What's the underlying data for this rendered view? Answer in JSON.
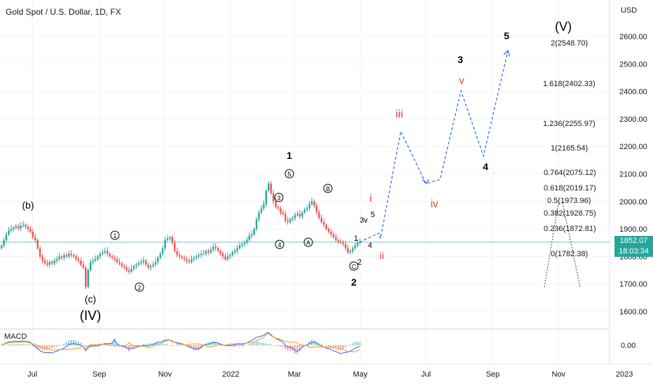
{
  "header": {
    "title": "Gold Spot / U.S. Dollar, 1D, FX"
  },
  "price_tag": {
    "price": "1852.07",
    "countdown": "18:03:34"
  },
  "indicator": {
    "label": "MACD",
    "axis_label": "0.00"
  },
  "chart_data": {
    "type": "candlestick",
    "yaxis": {
      "unit_label": "USD",
      "ylim": [
        1575,
        2650
      ],
      "ticks": [
        1600,
        1700,
        1800,
        1900,
        2000,
        2100,
        2200,
        2300,
        2400,
        2500,
        2600
      ],
      "tick_labels": [
        "1600.00",
        "1700.00",
        "1800.00",
        "1900.00",
        "2000.00",
        "2100.00",
        "2200.00",
        "2300.00",
        "2400.00",
        "2500.00",
        "2600.00"
      ]
    },
    "xaxis": {
      "range_days": [
        0,
        549
      ],
      "ticks": [
        {
          "label": "Jul",
          "day": 30
        },
        {
          "label": "Sep",
          "day": 92
        },
        {
          "label": "Nov",
          "day": 153
        },
        {
          "label": "2022",
          "day": 214
        },
        {
          "label": "Mar",
          "day": 273
        },
        {
          "label": "May",
          "day": 334
        },
        {
          "label": "Jul",
          "day": 395
        },
        {
          "label": "Sep",
          "day": 457
        },
        {
          "label": "Nov",
          "day": 518
        },
        {
          "label": "2023",
          "day": 579
        }
      ]
    },
    "candles_close": [
      1840,
      1860,
      1880,
      1895,
      1900,
      1905,
      1910,
      1902,
      1912,
      1915,
      1908,
      1900,
      1890,
      1870,
      1860,
      1830,
      1800,
      1785,
      1775,
      1770,
      1780,
      1775,
      1785,
      1790,
      1800,
      1795,
      1805,
      1800,
      1810,
      1805,
      1800,
      1790,
      1785,
      1770,
      1760,
      1690,
      1750,
      1780,
      1785,
      1790,
      1800,
      1810,
      1815,
      1820,
      1810,
      1800,
      1795,
      1790,
      1780,
      1775,
      1765,
      1760,
      1750,
      1745,
      1755,
      1765,
      1770,
      1775,
      1780,
      1785,
      1770,
      1760,
      1765,
      1770,
      1780,
      1795,
      1810,
      1830,
      1860,
      1865,
      1870,
      1850,
      1820,
      1805,
      1800,
      1795,
      1790,
      1785,
      1780,
      1790,
      1795,
      1800,
      1805,
      1810,
      1810,
      1820,
      1815,
      1825,
      1835,
      1830,
      1820,
      1810,
      1800,
      1790,
      1800,
      1805,
      1815,
      1820,
      1830,
      1840,
      1845,
      1850,
      1860,
      1875,
      1880,
      1900,
      1935,
      1960,
      1975,
      1990,
      2040,
      2065,
      2030,
      2000,
      1980,
      1975,
      1960,
      1955,
      1930,
      1925,
      1935,
      1940,
      1950,
      1955,
      1945,
      1960,
      1970,
      1975,
      1990,
      2000,
      1985,
      1960,
      1940,
      1925,
      1915,
      1900,
      1890,
      1880,
      1870,
      1860,
      1855,
      1850,
      1845,
      1830,
      1815,
      1820,
      1830,
      1840,
      1850,
      1852
    ],
    "projection_path": [
      {
        "x": 1852,
        "note": "start"
      },
      {
        "price": 1885
      },
      {
        "price": 1865
      },
      {
        "price": 2255
      },
      {
        "price": 2065
      },
      {
        "price": 2402
      },
      {
        "price": 2165
      },
      {
        "price": 2548.7
      }
    ],
    "fib_levels": [
      {
        "ratio": "2",
        "price": "2548.70"
      },
      {
        "ratio": "1.618",
        "price": "2402.33"
      },
      {
        "ratio": "1.236",
        "price": "2255.97"
      },
      {
        "ratio": "1",
        "price": "2165.54"
      },
      {
        "ratio": "0.764",
        "price": "2075.12"
      },
      {
        "ratio": "0.618",
        "price": "2019.17"
      },
      {
        "ratio": "0.5",
        "price": "1973.96"
      },
      {
        "ratio": "0.382",
        "price": "1928.75"
      },
      {
        "ratio": "0.236",
        "price": "1872.81"
      },
      {
        "ratio": "0",
        "price": "1782.38"
      }
    ],
    "wave_labels": [
      {
        "text": "(b)",
        "color": "#000000"
      },
      {
        "text": "(c)",
        "color": "#000000"
      },
      {
        "text": "(IV)",
        "color": "#000000"
      },
      {
        "text": "1",
        "color": "#000000",
        "circled": true
      },
      {
        "text": "2",
        "color": "#000000",
        "circled": true
      },
      {
        "text": "3",
        "color": "#000000",
        "circled": true
      },
      {
        "text": "4",
        "color": "#000000",
        "circled": true
      },
      {
        "text": "5",
        "color": "#000000",
        "circled": true
      },
      {
        "text": "A",
        "color": "#000000",
        "circled": true
      },
      {
        "text": "B",
        "color": "#000000",
        "circled": true
      },
      {
        "text": "C",
        "color": "#000000",
        "circled": true
      },
      {
        "text": "1",
        "color": "#000000"
      },
      {
        "text": "2",
        "color": "#000000"
      },
      {
        "text": "3",
        "color": "#000000"
      },
      {
        "text": "4",
        "color": "#000000"
      },
      {
        "text": "5",
        "color": "#000000"
      },
      {
        "text": "(V)",
        "color": "#000000"
      },
      {
        "text": "1",
        "color": "#000000"
      },
      {
        "text": "2",
        "color": "#000000"
      },
      {
        "text": "3v",
        "color": "#000000"
      },
      {
        "text": "4",
        "color": "#000000"
      },
      {
        "text": "5",
        "color": "#000000"
      },
      {
        "text": "i",
        "color": "#e53935"
      },
      {
        "text": "ii",
        "color": "#e53935"
      },
      {
        "text": "iii",
        "color": "#e53935"
      },
      {
        "text": "iv",
        "color": "#e53935"
      },
      {
        "text": "v",
        "color": "#e53935"
      }
    ],
    "colors": {
      "up": "#26a69a",
      "down": "#ef5350",
      "projection": "#2962ff",
      "macd": "#2962ff",
      "signal": "#ff9800",
      "grid": "#f0f3fa"
    }
  }
}
